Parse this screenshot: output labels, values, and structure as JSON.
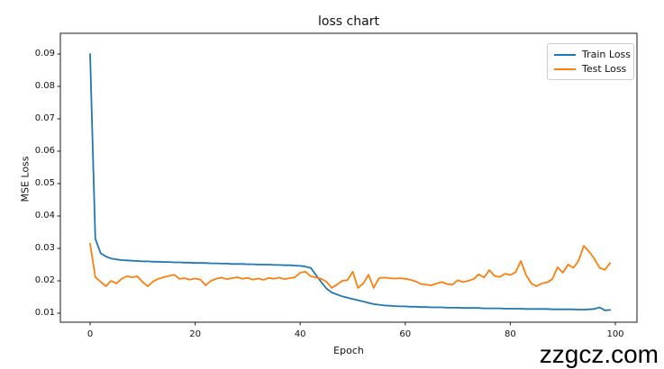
{
  "watermark": "zzgcz.com",
  "chart_data": {
    "type": "line",
    "title": "loss chart",
    "xlabel": "Epoch",
    "ylabel": "MSE Loss",
    "grid": false,
    "legend_position": "upper right",
    "xlim": [
      -5,
      104
    ],
    "ylim": [
      0.007,
      0.0965
    ],
    "x_ticks": [
      0,
      20,
      40,
      60,
      80,
      100
    ],
    "y_ticks": [
      0.01,
      0.02,
      0.03,
      0.04,
      0.05,
      0.06,
      0.07,
      0.08,
      0.09
    ],
    "x": [
      0,
      1,
      2,
      3,
      4,
      5,
      6,
      7,
      8,
      9,
      10,
      11,
      12,
      13,
      14,
      15,
      16,
      17,
      18,
      19,
      20,
      21,
      22,
      23,
      24,
      25,
      26,
      27,
      28,
      29,
      30,
      31,
      32,
      33,
      34,
      35,
      36,
      37,
      38,
      39,
      40,
      41,
      42,
      43,
      44,
      45,
      46,
      47,
      48,
      49,
      50,
      51,
      52,
      53,
      54,
      55,
      56,
      57,
      58,
      59,
      60,
      61,
      62,
      63,
      64,
      65,
      66,
      67,
      68,
      69,
      70,
      71,
      72,
      73,
      74,
      75,
      76,
      77,
      78,
      79,
      80,
      81,
      82,
      83,
      84,
      85,
      86,
      87,
      88,
      89,
      90,
      91,
      92,
      93,
      94,
      95,
      96,
      97,
      98,
      99
    ],
    "series": [
      {
        "name": "Train Loss",
        "color": "#1f77b4",
        "values": [
          0.09,
          0.033,
          0.0285,
          0.0275,
          0.0269,
          0.0266,
          0.0264,
          0.0263,
          0.0262,
          0.0261,
          0.026,
          0.026,
          0.0259,
          0.0259,
          0.0258,
          0.0258,
          0.0257,
          0.0257,
          0.0256,
          0.0256,
          0.0255,
          0.0255,
          0.0255,
          0.0254,
          0.0254,
          0.0253,
          0.0253,
          0.0252,
          0.0252,
          0.0252,
          0.0251,
          0.0251,
          0.025,
          0.025,
          0.025,
          0.0249,
          0.0249,
          0.0248,
          0.0248,
          0.0247,
          0.0246,
          0.0244,
          0.024,
          0.0218,
          0.0196,
          0.0176,
          0.0164,
          0.0158,
          0.0152,
          0.0148,
          0.0144,
          0.014,
          0.0136,
          0.0132,
          0.0128,
          0.0126,
          0.0124,
          0.0123,
          0.0122,
          0.0121,
          0.0121,
          0.012,
          0.012,
          0.0119,
          0.0119,
          0.0118,
          0.0118,
          0.0118,
          0.0117,
          0.0117,
          0.0117,
          0.0116,
          0.0116,
          0.0116,
          0.0116,
          0.0115,
          0.0115,
          0.0115,
          0.0115,
          0.0114,
          0.0114,
          0.0114,
          0.0114,
          0.0113,
          0.0113,
          0.0113,
          0.0113,
          0.0113,
          0.0112,
          0.0112,
          0.0112,
          0.0112,
          0.0112,
          0.0111,
          0.0111,
          0.0112,
          0.0113,
          0.0118,
          0.0109,
          0.011
        ]
      },
      {
        "name": "Test Loss",
        "color": "#ff7f0e",
        "values": [
          0.0315,
          0.0211,
          0.0197,
          0.0183,
          0.02,
          0.0192,
          0.0206,
          0.0214,
          0.0211,
          0.0214,
          0.0196,
          0.0183,
          0.0198,
          0.0206,
          0.0211,
          0.0215,
          0.0219,
          0.0206,
          0.0208,
          0.0204,
          0.0207,
          0.0204,
          0.0186,
          0.02,
          0.0206,
          0.021,
          0.0205,
          0.0208,
          0.0211,
          0.0206,
          0.0209,
          0.0204,
          0.0207,
          0.0203,
          0.0209,
          0.0206,
          0.021,
          0.0205,
          0.0208,
          0.0211,
          0.0225,
          0.0228,
          0.0214,
          0.021,
          0.0206,
          0.0197,
          0.0178,
          0.0188,
          0.02,
          0.0202,
          0.0228,
          0.0178,
          0.0192,
          0.0219,
          0.0178,
          0.0208,
          0.021,
          0.0208,
          0.0207,
          0.0208,
          0.0206,
          0.0203,
          0.0198,
          0.019,
          0.0188,
          0.0186,
          0.0192,
          0.0196,
          0.019,
          0.0188,
          0.0202,
          0.0196,
          0.02,
          0.0205,
          0.022,
          0.021,
          0.0233,
          0.0215,
          0.0212,
          0.0222,
          0.0218,
          0.0226,
          0.0261,
          0.0218,
          0.0192,
          0.0183,
          0.0192,
          0.0195,
          0.0205,
          0.0242,
          0.0225,
          0.025,
          0.024,
          0.0262,
          0.0308,
          0.029,
          0.0268,
          0.024,
          0.0234,
          0.0255
        ]
      }
    ]
  }
}
